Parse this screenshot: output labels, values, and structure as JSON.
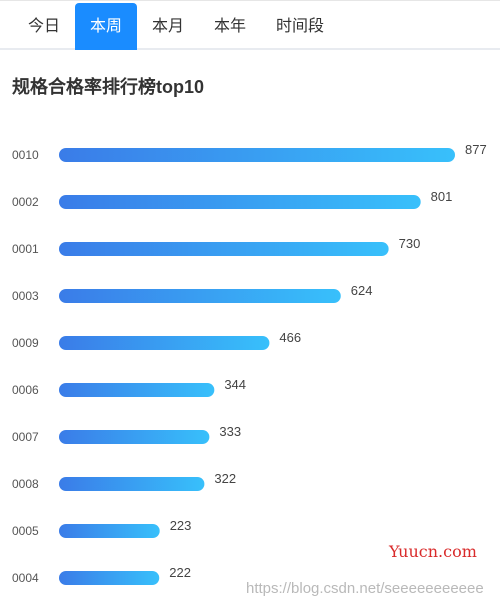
{
  "tabs": [
    {
      "label": "今日",
      "active": false
    },
    {
      "label": "本周",
      "active": true
    },
    {
      "label": "本月",
      "active": false
    },
    {
      "label": "本年",
      "active": false
    },
    {
      "label": "时间段",
      "active": false
    }
  ],
  "colors": {
    "accent": "#1a8cff",
    "bar_start": "#3a7ce8",
    "bar_end": "#38c0fb"
  },
  "watermark": {
    "site": "Yuucn.com",
    "url": "https://blog.csdn.net/seeeeeeeeeee"
  },
  "chart_data": {
    "type": "bar",
    "orientation": "horizontal",
    "title": "规格合格率排行榜top10",
    "categories": [
      "0010",
      "0002",
      "0001",
      "0003",
      "0009",
      "0006",
      "0007",
      "0008",
      "0005",
      "0004"
    ],
    "values": [
      877,
      801,
      730,
      624,
      466,
      344,
      333,
      322,
      223,
      222
    ],
    "xlim": [
      0,
      877
    ],
    "grid": false,
    "legend": "none",
    "data_labels": true
  }
}
